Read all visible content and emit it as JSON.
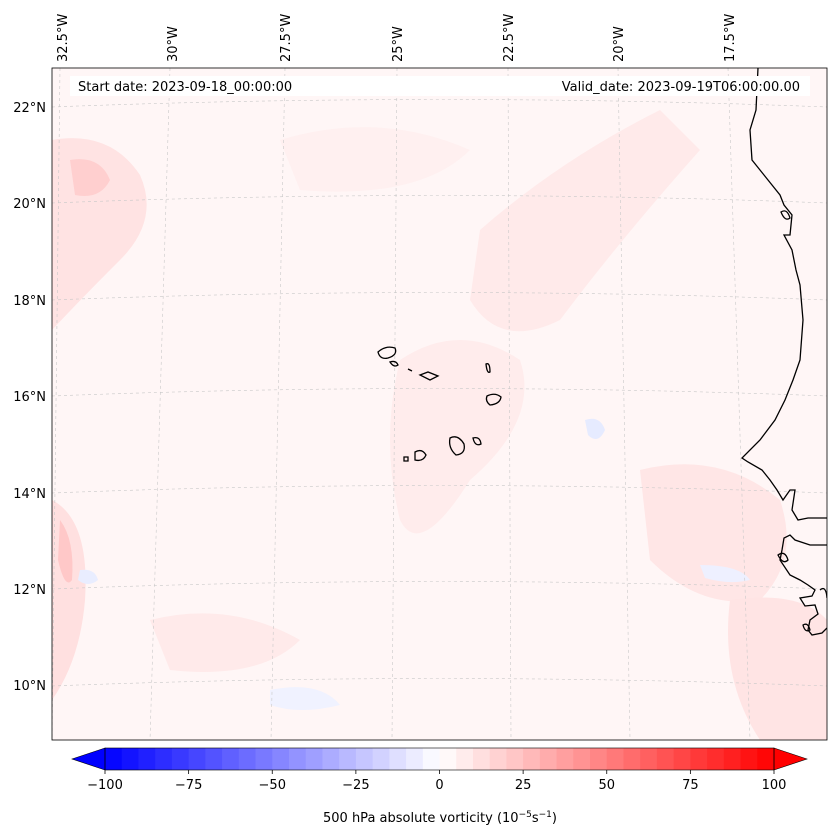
{
  "header": {
    "start_date": "Start date: 2023-09-18_00:00:00",
    "valid_date": "Valid_date: 2023-09-19T06:00:00.00"
  },
  "lon_ticks": [
    "32.5°W",
    "30°W",
    "27.5°W",
    "25°W",
    "22.5°W",
    "20°W",
    "17.5°W"
  ],
  "lat_ticks": [
    "22°N",
    "20°N",
    "18°N",
    "16°N",
    "14°N",
    "12°N",
    "10°N"
  ],
  "colorbar": {
    "ticks": [
      "−100",
      "−75",
      "−50",
      "−25",
      "0",
      "25",
      "50",
      "75",
      "100"
    ],
    "label": "500 hPa absolute vorticity (10",
    "label_exp1": "−5",
    "label_mid": "s",
    "label_exp2": "−1",
    "label_end": ")",
    "min_color": "#0000ff",
    "mid_color": "#ffffff",
    "max_color": "#ff0000"
  },
  "colors": {
    "background_tint": "#fff4f4",
    "coastline": "#000000",
    "gridline": "#bdbdbd"
  }
}
